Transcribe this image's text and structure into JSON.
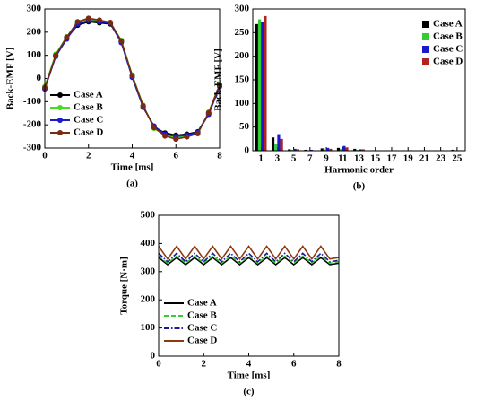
{
  "chart_data": [
    {
      "type": "line",
      "label": "(a)",
      "x_label": "Time [ms]",
      "y_label": "Back-EMF [V]",
      "x": [
        0,
        0.5,
        1,
        1.5,
        2,
        2.5,
        3,
        3.5,
        4,
        4.5,
        5,
        5.5,
        6,
        6.5,
        7,
        7.5,
        8
      ],
      "xlim": [
        0,
        8
      ],
      "xticks": [
        0,
        2,
        4,
        6,
        8
      ],
      "ylim": [
        -300,
        300
      ],
      "yticks": [
        -300,
        -200,
        -100,
        0,
        100,
        200,
        300
      ],
      "marker": true,
      "legend": "lower-left",
      "series": [
        {
          "name": "Case A",
          "color": "#000000",
          "dash": "solid",
          "values": [
            -40,
            100,
            175,
            230,
            245,
            240,
            235,
            160,
            10,
            -120,
            -210,
            -235,
            -245,
            -240,
            -230,
            -150,
            -30
          ]
        },
        {
          "name": "Case B",
          "color": "#44dd22",
          "dash": "solid",
          "values": [
            -35,
            105,
            180,
            240,
            255,
            250,
            240,
            165,
            15,
            -115,
            -215,
            -245,
            -255,
            -250,
            -235,
            -145,
            -25
          ]
        },
        {
          "name": "Case C",
          "color": "#1a1acc",
          "dash": "solid",
          "values": [
            -45,
            95,
            170,
            235,
            250,
            245,
            238,
            155,
            5,
            -125,
            -205,
            -240,
            -250,
            -245,
            -232,
            -155,
            -35
          ]
        },
        {
          "name": "Case D",
          "color": "#7a2a10",
          "dash": "solid",
          "values": [
            -40,
            100,
            178,
            245,
            260,
            252,
            242,
            162,
            12,
            -118,
            -212,
            -248,
            -262,
            -252,
            -238,
            -148,
            -28
          ]
        }
      ]
    },
    {
      "type": "bar",
      "label": "(b)",
      "x_label": "Harmonic order",
      "y_label": "Back-EMF [V]",
      "categories": [
        "1",
        "3",
        "5",
        "7",
        "9",
        "11",
        "13",
        "15",
        "17",
        "19",
        "21",
        "23",
        "25"
      ],
      "ylim": [
        0,
        300
      ],
      "yticks": [
        0,
        50,
        100,
        150,
        200,
        250,
        300
      ],
      "legend": "upper-right",
      "series": [
        {
          "name": "Case A",
          "color": "#000000",
          "values": [
            268,
            28,
            3,
            2,
            5,
            6,
            4,
            1,
            1,
            1,
            1,
            1,
            2
          ]
        },
        {
          "name": "Case B",
          "color": "#33cc33",
          "values": [
            278,
            15,
            2,
            1,
            3,
            4,
            2,
            1,
            0,
            0,
            1,
            0,
            1
          ]
        },
        {
          "name": "Case C",
          "color": "#1a1acc",
          "values": [
            272,
            35,
            4,
            2,
            6,
            10,
            3,
            1,
            1,
            1,
            1,
            1,
            1
          ]
        },
        {
          "name": "Case D",
          "color": "#b22222",
          "values": [
            285,
            25,
            3,
            1,
            4,
            7,
            3,
            1,
            1,
            1,
            1,
            1,
            1
          ]
        }
      ]
    },
    {
      "type": "line",
      "label": "(c)",
      "x_label": "Time [ms]",
      "y_label": "Torque [N·m]",
      "x": [
        0,
        0.4,
        0.8,
        1.2,
        1.6,
        2,
        2.4,
        2.8,
        3.2,
        3.6,
        4,
        4.4,
        4.8,
        5.2,
        5.6,
        6,
        6.4,
        6.8,
        7.2,
        7.6,
        8
      ],
      "xlim": [
        0,
        8
      ],
      "xticks": [
        0,
        2,
        4,
        6,
        8
      ],
      "ylim": [
        0,
        500
      ],
      "yticks": [
        0,
        100,
        200,
        300,
        400,
        500
      ],
      "marker": false,
      "legend": "lower-left",
      "series": [
        {
          "name": "Case A",
          "color": "#000000",
          "dash": "solid",
          "values": [
            350,
            325,
            350,
            325,
            350,
            325,
            350,
            325,
            350,
            325,
            350,
            325,
            350,
            325,
            350,
            325,
            350,
            325,
            350,
            325,
            330
          ]
        },
        {
          "name": "Case B",
          "color": "#33cc33",
          "dash": "dashed",
          "values": [
            355,
            330,
            355,
            330,
            355,
            330,
            355,
            330,
            355,
            330,
            355,
            330,
            355,
            330,
            355,
            330,
            355,
            330,
            355,
            330,
            335
          ]
        },
        {
          "name": "Case C",
          "color": "#1a1a99",
          "dash": "dashdot",
          "values": [
            365,
            335,
            365,
            335,
            365,
            335,
            365,
            335,
            365,
            335,
            365,
            335,
            365,
            335,
            365,
            335,
            365,
            335,
            365,
            335,
            340
          ]
        },
        {
          "name": "Case D",
          "color": "#8b3a10",
          "dash": "solid",
          "values": [
            390,
            345,
            390,
            345,
            390,
            345,
            390,
            345,
            390,
            345,
            390,
            345,
            390,
            345,
            390,
            345,
            390,
            345,
            390,
            345,
            350
          ]
        }
      ]
    }
  ]
}
